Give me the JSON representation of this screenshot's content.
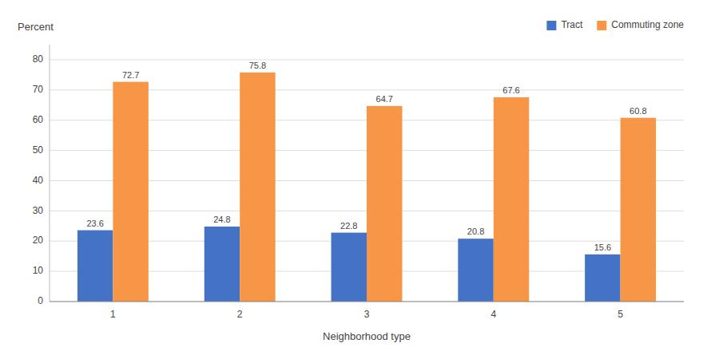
{
  "chart_data": {
    "type": "bar",
    "categories": [
      "1",
      "2",
      "3",
      "4",
      "5"
    ],
    "series": [
      {
        "name": "Tract",
        "color": "#4472C4",
        "values": [
          23.6,
          24.8,
          22.8,
          20.8,
          15.6
        ]
      },
      {
        "name": "Commuting zone",
        "color": "#F79646",
        "values": [
          72.7,
          75.8,
          64.7,
          67.6,
          60.8
        ]
      }
    ],
    "xlabel": "Neighborhood type",
    "ylabel": "Percent",
    "ylim": [
      0,
      85
    ],
    "yticks": [
      0,
      10,
      20,
      30,
      40,
      50,
      60,
      70,
      80
    ],
    "grid": true,
    "legend": "upper right",
    "data_labels": true
  }
}
